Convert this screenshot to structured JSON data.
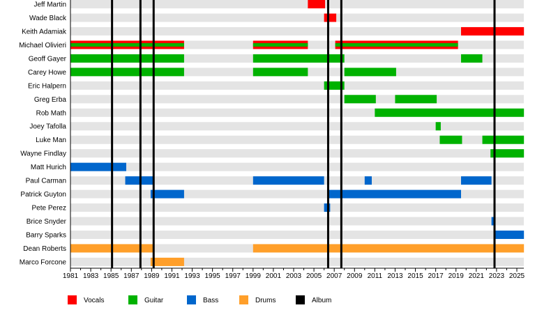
{
  "chart_data": {
    "type": "timeline",
    "xlim": [
      1981,
      2025.7
    ],
    "x_ticks": [
      1981,
      1983,
      1985,
      1987,
      1989,
      1991,
      1993,
      1995,
      1997,
      1999,
      2001,
      2003,
      2005,
      2007,
      2009,
      2011,
      2013,
      2015,
      2017,
      2019,
      2021,
      2023,
      2025
    ],
    "grid": false,
    "legend_position": "bottom",
    "roles": [
      {
        "key": "vocals",
        "name": "Vocals",
        "color": "#ff0000"
      },
      {
        "key": "guitar",
        "name": "Guitar",
        "color": "#00b200"
      },
      {
        "key": "bass",
        "name": "Bass",
        "color": "#0066cc"
      },
      {
        "key": "drums",
        "name": "Drums",
        "color": "#ff9f2a"
      },
      {
        "key": "album",
        "name": "Album",
        "color": "#000000"
      }
    ],
    "members": [
      {
        "name": "Jeff Martin",
        "periods": [
          {
            "role": "vocals",
            "start": 2004.4,
            "end": 2006.1
          }
        ]
      },
      {
        "name": "Wade Black",
        "periods": [
          {
            "role": "vocals",
            "start": 2006.0,
            "end": 2007.2
          }
        ]
      },
      {
        "name": "Keith Adamiak",
        "periods": [
          {
            "role": "vocals",
            "start": 2019.5,
            "end": 2025.7
          }
        ]
      },
      {
        "name": "Michael Olivieri",
        "periods": [
          {
            "role": "vocals+guitar",
            "start": 1981.0,
            "end": 1992.2
          },
          {
            "role": "vocals+guitar",
            "start": 1999.0,
            "end": 2004.4
          },
          {
            "role": "vocals+guitar",
            "start": 2007.1,
            "end": 2019.2
          }
        ]
      },
      {
        "name": "Geoff Gayer",
        "periods": [
          {
            "role": "guitar",
            "start": 1981.0,
            "end": 1992.2
          },
          {
            "role": "guitar",
            "start": 1999.0,
            "end": 2008.0
          },
          {
            "role": "guitar",
            "start": 2019.5,
            "end": 2021.6
          }
        ]
      },
      {
        "name": "Carey Howe",
        "periods": [
          {
            "role": "guitar",
            "start": 1981.0,
            "end": 1992.2
          },
          {
            "role": "guitar",
            "start": 1999.0,
            "end": 2004.4
          },
          {
            "role": "guitar",
            "start": 2008.0,
            "end": 2013.1
          }
        ]
      },
      {
        "name": "Eric Halpern",
        "periods": [
          {
            "role": "guitar",
            "start": 2006.0,
            "end": 2008.0
          }
        ]
      },
      {
        "name": "Greg Erba",
        "periods": [
          {
            "role": "guitar",
            "start": 2008.0,
            "end": 2011.1
          },
          {
            "role": "guitar",
            "start": 2013.0,
            "end": 2017.1
          }
        ]
      },
      {
        "name": "Rob Math",
        "periods": [
          {
            "role": "guitar",
            "start": 2011.0,
            "end": 2025.7
          }
        ]
      },
      {
        "name": "Joey Tafolla",
        "periods": [
          {
            "role": "guitar",
            "start": 2017.0,
            "end": 2017.5
          }
        ]
      },
      {
        "name": "Luke Man",
        "periods": [
          {
            "role": "guitar",
            "start": 2017.4,
            "end": 2019.6
          },
          {
            "role": "guitar",
            "start": 2021.6,
            "end": 2025.7
          }
        ]
      },
      {
        "name": "Wayne Findlay",
        "periods": [
          {
            "role": "guitar",
            "start": 2022.4,
            "end": 2025.7
          }
        ]
      },
      {
        "name": "Matt Hurich",
        "periods": [
          {
            "role": "bass",
            "start": 1981.0,
            "end": 1986.5
          }
        ]
      },
      {
        "name": "Paul Carman",
        "periods": [
          {
            "role": "bass",
            "start": 1986.4,
            "end": 1989.2
          },
          {
            "role": "bass",
            "start": 1999.0,
            "end": 2006.0
          },
          {
            "role": "bass",
            "start": 2010.0,
            "end": 2010.7
          },
          {
            "role": "bass",
            "start": 2019.5,
            "end": 2022.5
          }
        ]
      },
      {
        "name": "Patrick Guyton",
        "periods": [
          {
            "role": "bass",
            "start": 1988.9,
            "end": 1992.2
          },
          {
            "role": "bass",
            "start": 2006.5,
            "end": 2019.5
          }
        ]
      },
      {
        "name": "Pete Perez",
        "periods": [
          {
            "role": "bass",
            "start": 2006.0,
            "end": 2006.6
          }
        ]
      },
      {
        "name": "Brice Snyder",
        "periods": [
          {
            "role": "bass",
            "start": 2022.5,
            "end": 2022.8
          }
        ]
      },
      {
        "name": "Barry Sparks",
        "periods": [
          {
            "role": "bass",
            "start": 2022.7,
            "end": 2025.7
          }
        ]
      },
      {
        "name": "Dean Roberts",
        "periods": [
          {
            "role": "drums",
            "start": 1981.0,
            "end": 1989.2
          },
          {
            "role": "drums",
            "start": 1999.0,
            "end": 2025.7
          }
        ]
      },
      {
        "name": "Marco Forcone",
        "periods": [
          {
            "role": "drums",
            "start": 1988.9,
            "end": 1992.2
          }
        ]
      }
    ],
    "albums": [
      1985.1,
      1987.9,
      1989.2,
      2006.4,
      2007.7,
      2022.8
    ]
  }
}
